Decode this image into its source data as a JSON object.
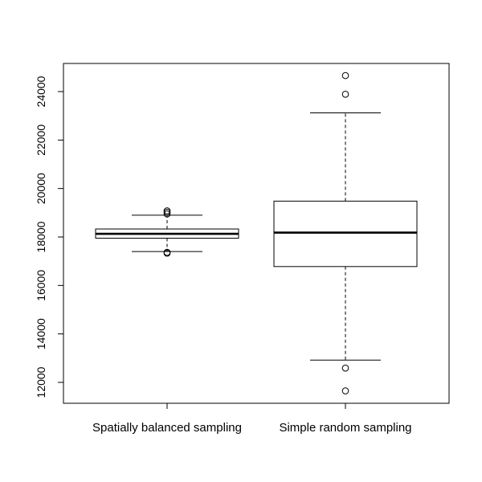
{
  "chart_data": {
    "type": "boxplot",
    "title": "",
    "xlabel": "",
    "ylabel": "",
    "ylim": [
      11200,
      25200
    ],
    "y_ticks": [
      12000,
      14000,
      16000,
      18000,
      20000,
      22000,
      24000
    ],
    "y_tick_labels": [
      "12000",
      "14000",
      "16000",
      "18000",
      "20000",
      "22000",
      "24000"
    ],
    "grid": false,
    "categories": [
      "Spatially balanced sampling",
      "Simple random sampling"
    ],
    "boxes": [
      {
        "name": "Spatially balanced sampling",
        "whisker_low": 17400,
        "q1": 17950,
        "median": 18130,
        "q3": 18330,
        "whisker_high": 18900,
        "outliers": [
          17330,
          17370,
          18950,
          19020,
          19080
        ]
      },
      {
        "name": "Simple random sampling",
        "whisker_low": 12920,
        "q1": 16780,
        "median": 18180,
        "q3": 19480,
        "whisker_high": 23120,
        "outliers": [
          11650,
          12590,
          23890,
          24660
        ]
      }
    ]
  }
}
